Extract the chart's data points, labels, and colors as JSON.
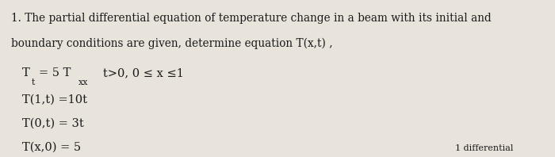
{
  "background_color": "#e8e4dc",
  "text_color": "#1a1a1a",
  "line1": "1. The partial differential equation of temperature change in a beam with its initial and",
  "line2": "boundary conditions are given, determine equation T(x,t) ,",
  "line3_plain": "T",
  "line3_sub_t": "t",
  "line3_rest": " = 5 T",
  "line3_sub_xx": "xx",
  "line3_end": "   t>0, 0 ≤ x ≤1",
  "line4": "T(1,t) =10t",
  "line5": "T(0,t) = 3t",
  "line6": "T(x,0) = 5",
  "line7": "1 differential",
  "figwidth": 7.0,
  "figheight": 1.98,
  "dpi": 100
}
